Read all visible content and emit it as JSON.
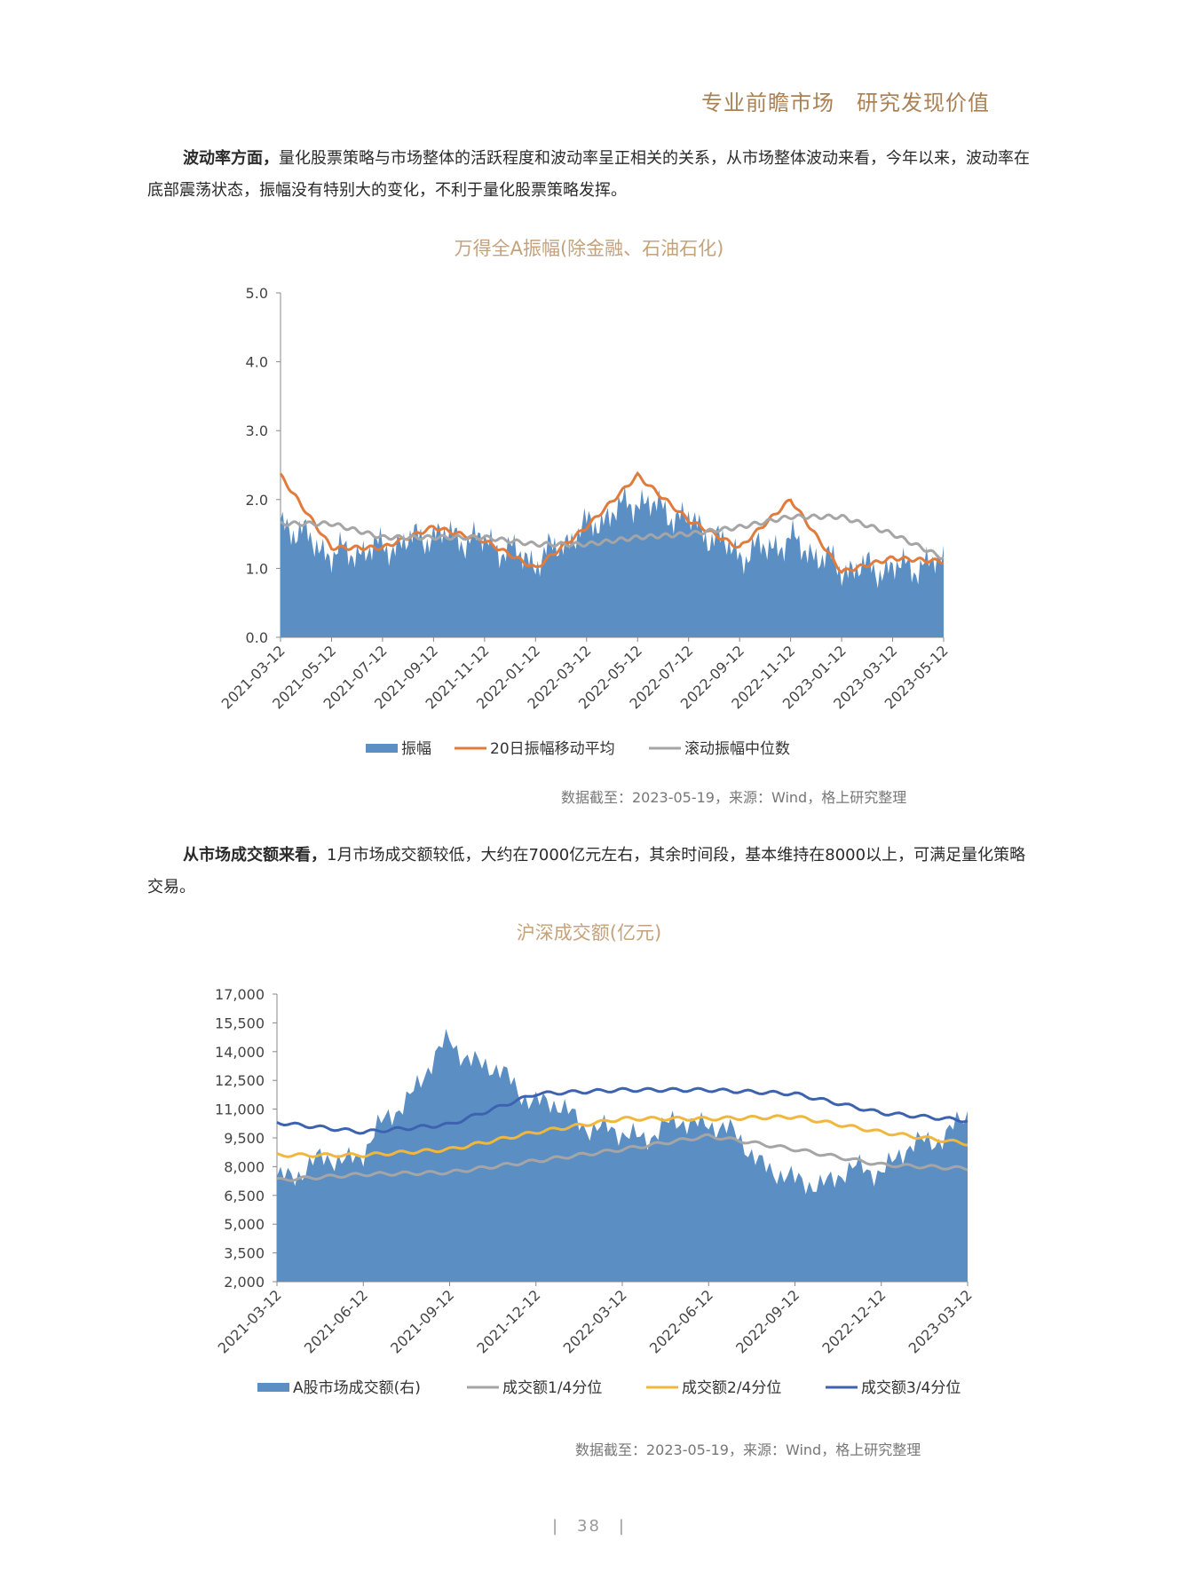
{
  "header": {
    "slogan": "专业前瞻市场　研究发现价值"
  },
  "para1": {
    "lead": "波动率方面，",
    "text": "量化股票策略与市场整体的活跃程度和波动率呈正相关的关系，从市场整体波动来看，今年以来，波动率在底部震荡状态，振幅没有特别大的变化，不利于量化股票策略发挥。"
  },
  "para2": {
    "lead": "从市场成交额来看，",
    "text": "1月市场成交额较低，大约在7000亿元左右，其余时间段，基本维持在8000以上，可满足量化策略交易。"
  },
  "chart_data": [
    {
      "type": "area",
      "title": "万得全A振幅(除金融、石油石化)",
      "ylim": [
        0,
        5
      ],
      "yticks": [
        "0.0",
        "1.0",
        "2.0",
        "3.0",
        "4.0",
        "5.0"
      ],
      "categories": [
        "2021-03-12",
        "2021-05-12",
        "2021-07-12",
        "2021-09-12",
        "2021-11-12",
        "2022-01-12",
        "2022-03-12",
        "2022-05-12",
        "2022-07-12",
        "2022-09-12",
        "2022-11-12",
        "2023-01-12",
        "2023-03-12",
        "2023-05-12"
      ],
      "series": [
        {
          "name": "振幅",
          "kind": "area",
          "color": "#5b8fc4",
          "values": [
            1.7,
            1.2,
            1.3,
            1.5,
            1.4,
            1.1,
            1.6,
            2.0,
            1.7,
            1.2,
            1.4,
            1.0,
            1.0,
            1.1
          ]
        },
        {
          "name": "20日振幅移动平均",
          "kind": "line",
          "color": "#e07b3c",
          "values": [
            2.35,
            1.3,
            1.3,
            1.6,
            1.4,
            1.0,
            1.6,
            2.35,
            1.7,
            1.3,
            2.0,
            0.95,
            1.15,
            1.1
          ]
        },
        {
          "name": "滚动振幅中位数",
          "kind": "line",
          "color": "#a5a5a5",
          "values": [
            1.65,
            1.65,
            1.45,
            1.45,
            1.45,
            1.35,
            1.35,
            1.45,
            1.5,
            1.6,
            1.75,
            1.75,
            1.5,
            1.15
          ]
        }
      ],
      "legend_position": "bottom",
      "source": "数据截至：2023-05-19，来源：Wind，格上研究整理"
    },
    {
      "type": "area",
      "title": "沪深成交额(亿元)",
      "ylim": [
        2000,
        17000
      ],
      "yticks": [
        "2,000",
        "3,500",
        "5,000",
        "6,500",
        "8,000",
        "9,500",
        "11,000",
        "12,500",
        "14,000",
        "15,500",
        "17,000"
      ],
      "categories": [
        "2021-03-12",
        "2021-06-12",
        "2021-09-12",
        "2021-12-12",
        "2022-03-12",
        "2022-06-12",
        "2022-09-12",
        "2022-12-12",
        "2023-03-12"
      ],
      "series": [
        {
          "name": "A股市场成交额(右)",
          "kind": "area",
          "color": "#5b8fc4",
          "values": [
            7500,
            8800,
            14500,
            11500,
            9500,
            10500,
            7000,
            8000,
            10500
          ]
        },
        {
          "name": "成交额1/4分位",
          "kind": "line",
          "color": "#a5a5a5",
          "values": [
            7300,
            7600,
            7700,
            8300,
            8900,
            9600,
            8900,
            8100,
            7900
          ]
        },
        {
          "name": "成交额2/4分位",
          "kind": "line",
          "color": "#f0b73c",
          "values": [
            8600,
            8600,
            8900,
            9800,
            10500,
            10500,
            10600,
            9800,
            9200
          ]
        },
        {
          "name": "成交额3/4分位",
          "kind": "line",
          "color": "#3d63b0",
          "values": [
            10300,
            9800,
            10200,
            11800,
            12000,
            12000,
            11800,
            10800,
            10400
          ]
        }
      ],
      "legend_position": "bottom",
      "source": "数据截至：2023-05-19，来源：Wind，格上研究整理"
    }
  ],
  "footer": {
    "page": "|　38　|"
  }
}
